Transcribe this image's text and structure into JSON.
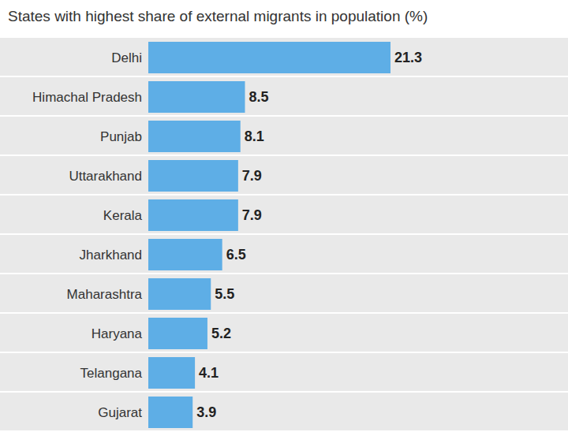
{
  "chart_data": {
    "type": "bar",
    "title": "States with highest share of external migrants in population (%)",
    "categories": [
      "Delhi",
      "Himachal Pradesh",
      "Punjab",
      "Uttarakhand",
      "Kerala",
      "Jharkhand",
      "Maharashtra",
      "Haryana",
      "Telangana",
      "Gujarat"
    ],
    "values": [
      21.3,
      8.5,
      8.1,
      7.9,
      7.9,
      6.5,
      5.5,
      5.2,
      4.1,
      3.9
    ],
    "color": "#5eaee6",
    "orientation": "horizontal",
    "data_labels": true,
    "tick_labels": "y",
    "grid": false
  }
}
